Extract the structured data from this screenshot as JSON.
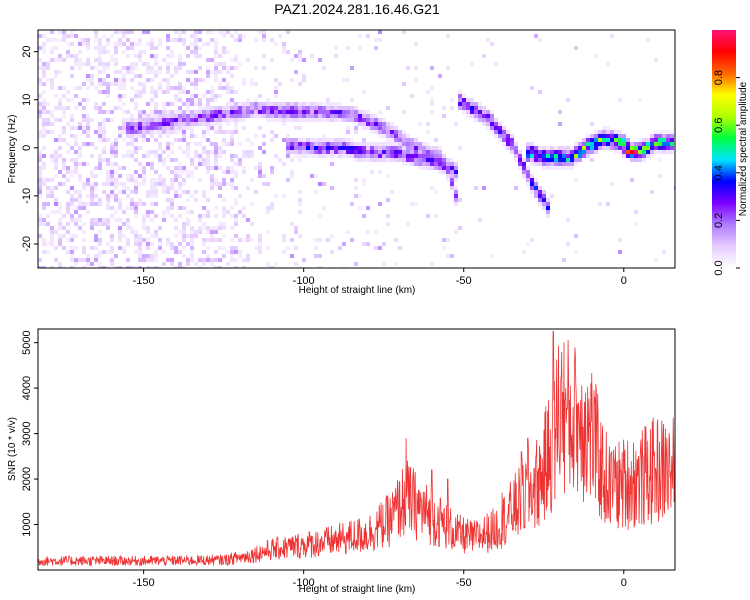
{
  "title": "PAZ1.2024.281.16.46.G21",
  "chart_data": [
    {
      "type": "heatmap",
      "xlabel": "Height of straight line (km)",
      "ylabel": "Frequency (Hz)",
      "xlim": [
        -183,
        16
      ],
      "ylim": [
        -25,
        24.5
      ],
      "xticks": [
        -150,
        -100,
        -50,
        0
      ],
      "yticks": [
        -20,
        -10,
        0,
        10,
        20
      ],
      "colorbar": {
        "label": "Normalized spectral amplitude",
        "range": [
          0,
          1
        ],
        "ticks": [
          0.0,
          0.2,
          0.4,
          0.6,
          0.8
        ],
        "tick_labels": [
          "0.0",
          "0.2",
          "0.4",
          "0.6",
          "0.8"
        ],
        "colors": [
          "#ffffff",
          "#e6ccff",
          "#b07cff",
          "#7a00ff",
          "#0000ff",
          "#00e5ff",
          "#00ff40",
          "#b0ff00",
          "#ffff00",
          "#ff6600",
          "#ff0000",
          "#ff1177"
        ]
      },
      "ridges": [
        {
          "points": [
            [
              -155,
              4
            ],
            [
              -145,
              5
            ],
            [
              -135,
              6
            ],
            [
              -125,
              7
            ],
            [
              -115,
              8
            ],
            [
              -105,
              7.5
            ],
            [
              -95,
              7.5
            ],
            [
              -85,
              7
            ],
            [
              -78,
              5
            ],
            [
              -72,
              3
            ],
            [
              -68,
              1
            ],
            [
              -62,
              -1
            ],
            [
              -57,
              -2
            ],
            [
              -54,
              -6
            ],
            [
              -52,
              -11
            ]
          ],
          "amp": 0.22
        },
        {
          "points": [
            [
              -105,
              0.5
            ],
            [
              -98,
              0
            ],
            [
              -88,
              0
            ],
            [
              -80,
              -1
            ],
            [
              -72,
              -1
            ],
            [
              -65,
              -2
            ],
            [
              -58,
              -3
            ],
            [
              -52,
              -5
            ]
          ],
          "amp": 0.25
        },
        {
          "points": [
            [
              -52,
              10
            ],
            [
              -47,
              8
            ],
            [
              -42,
              6
            ],
            [
              -38,
              3
            ],
            [
              -34,
              0
            ],
            [
              -32,
              -3
            ],
            [
              -29,
              -7
            ],
            [
              -26,
              -10
            ],
            [
              -23,
              -13
            ]
          ],
          "amp": 0.28
        },
        {
          "points": [
            [
              -30,
              -1
            ],
            [
              -25,
              -2
            ],
            [
              -20,
              -2
            ],
            [
              -16,
              -2
            ],
            [
              -12,
              0
            ],
            [
              -6,
              2
            ],
            [
              0,
              1
            ],
            [
              3,
              -1
            ],
            [
              6,
              -0.5
            ],
            [
              10,
              1
            ],
            [
              16,
              1
            ]
          ],
          "amp": 0.45
        }
      ],
      "peak": {
        "x": 3,
        "f": -0.8,
        "amp": 0.95
      }
    },
    {
      "type": "line",
      "xlabel": "Height of straight line (km)",
      "ylabel": "SNR (10 * v/v)",
      "xlim": [
        -183,
        16
      ],
      "ylim": [
        0,
        5300
      ],
      "xticks": [
        -150,
        -100,
        -50,
        0
      ],
      "yticks": [
        1000,
        2000,
        3000,
        4000,
        5000
      ],
      "color": "#ee3333",
      "envelope": [
        [
          -183,
          200
        ],
        [
          -150,
          200
        ],
        [
          -125,
          220
        ],
        [
          -118,
          300
        ],
        [
          -110,
          450
        ],
        [
          -100,
          550
        ],
        [
          -90,
          650
        ],
        [
          -80,
          800
        ],
        [
          -73,
          1100
        ],
        [
          -68,
          1600
        ],
        [
          -63,
          1300
        ],
        [
          -58,
          1100
        ],
        [
          -52,
          800
        ],
        [
          -47,
          700
        ],
        [
          -40,
          900
        ],
        [
          -35,
          1300
        ],
        [
          -31,
          1600
        ],
        [
          -26,
          2000
        ],
        [
          -22,
          2800
        ],
        [
          -20,
          3600
        ],
        [
          -17,
          3300
        ],
        [
          -13,
          3200
        ],
        [
          -10,
          3000
        ],
        [
          -7,
          2200
        ],
        [
          -4,
          1800
        ],
        [
          0,
          1900
        ],
        [
          5,
          2000
        ],
        [
          10,
          2200
        ],
        [
          16,
          2200
        ]
      ],
      "spikes": [
        [
          -68,
          2900
        ],
        [
          -60,
          2200
        ],
        [
          -55,
          2000
        ],
        [
          -38,
          1700
        ],
        [
          -32,
          2600
        ],
        [
          -30,
          2900
        ],
        [
          -22,
          5250
        ],
        [
          -19,
          3900
        ],
        [
          -15,
          4100
        ],
        [
          -12,
          3900
        ],
        [
          -9,
          3800
        ],
        [
          -3,
          2400
        ],
        [
          6,
          2500
        ],
        [
          12,
          2600
        ],
        [
          15,
          2500
        ]
      ],
      "noise": 0.55
    }
  ]
}
